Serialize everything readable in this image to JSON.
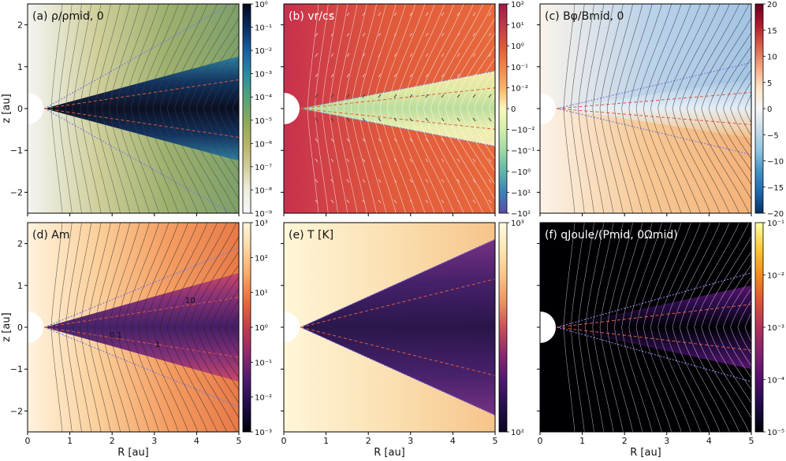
{
  "figure": {
    "xlabel": "R [au]",
    "ylabel": "z [au]"
  },
  "chart_data": [
    {
      "type": "heatmap",
      "id": "a",
      "title": "(a) ρ/ρmid, 0",
      "xlim": [
        0,
        5
      ],
      "ylim": [
        -2.5,
        2.5
      ],
      "x_ticks": [
        "0",
        "1",
        "2",
        "3",
        "4",
        "5"
      ],
      "y_ticks": [
        "2",
        "1",
        "0",
        "−1",
        "−2"
      ],
      "colorbar": {
        "scale": "log",
        "ticks": [
          "10⁰",
          "10⁻¹",
          "10⁻²",
          "10⁻³",
          "10⁻⁴",
          "10⁻⁵",
          "10⁻⁶",
          "10⁻⁷",
          "10⁻⁸",
          "10⁻⁹"
        ],
        "colors": [
          "#03071e",
          "#0b2c5f",
          "#1a5fa0",
          "#2a8aa2",
          "#54a27a",
          "#8aa85e",
          "#b5b368",
          "#d2cc9b",
          "#eeeedd",
          "#f7f7f7"
        ]
      },
      "contours": [
        "log-density bands",
        "field lines"
      ]
    },
    {
      "type": "heatmap",
      "id": "b",
      "title": "(b) vr/cs",
      "xlim": [
        0,
        5
      ],
      "ylim": [
        -2.5,
        2.5
      ],
      "x_ticks": [
        "0",
        "1",
        "2",
        "3",
        "4",
        "5"
      ],
      "y_ticks": [
        "2",
        "1",
        "0",
        "−1",
        "−2"
      ],
      "colorbar": {
        "scale": "symlog",
        "ticks": [
          "10²",
          "10¹",
          "10⁰",
          "10⁻¹",
          "10⁻²",
          "0",
          "−10⁻²",
          "−10⁻¹",
          "−10⁰",
          "−10¹",
          "−10²"
        ],
        "colors": [
          "#9b1d47",
          "#c4364a",
          "#e2553a",
          "#f2844b",
          "#f7b36a",
          "#fbf7be",
          "#d4eeae",
          "#a0d8a6",
          "#61b5a8",
          "#3e80b6",
          "#5a4ba5"
        ]
      },
      "annotations": [
        "velocity arrows"
      ]
    },
    {
      "type": "heatmap",
      "id": "c",
      "title": "(c) Bφ/Bmid, 0",
      "xlim": [
        0,
        5
      ],
      "ylim": [
        -2.5,
        2.5
      ],
      "x_ticks": [
        "0",
        "1",
        "2",
        "3",
        "4",
        "5"
      ],
      "y_ticks": [
        "2",
        "1",
        "0",
        "−1",
        "−2"
      ],
      "colorbar": {
        "scale": "linear",
        "ticks": [
          "20",
          "15",
          "10",
          "5",
          "0",
          "−5",
          "−10",
          "−15",
          "−20"
        ],
        "colors": [
          "#67001f",
          "#b2182b",
          "#d6604d",
          "#f4a582",
          "#fbe4c8",
          "#f7f7f7",
          "#c8dcea",
          "#92c5de",
          "#4393c3",
          "#2166ac",
          "#053061"
        ]
      },
      "annotations": [
        "contour 10"
      ]
    },
    {
      "type": "heatmap",
      "id": "d",
      "title": "(d) Am",
      "xlim": [
        0,
        5
      ],
      "ylim": [
        -2.5,
        2.5
      ],
      "x_ticks": [
        "0",
        "1",
        "2",
        "3",
        "4",
        "5"
      ],
      "y_ticks": [
        "2",
        "1",
        "0",
        "−1",
        "−2"
      ],
      "colorbar": {
        "scale": "log",
        "ticks": [
          "10³",
          "10²",
          "10¹",
          "10⁰",
          "10⁻¹",
          "10⁻²",
          "10⁻³"
        ],
        "colors": [
          "#fff5dc",
          "#fcd6a4",
          "#f8a866",
          "#ea6a3e",
          "#c23c4b",
          "#8d2a6b",
          "#4d1c6c",
          "#1f0c48",
          "#000004"
        ]
      },
      "annotations": [
        "10",
        "0.1",
        "1"
      ]
    },
    {
      "type": "heatmap",
      "id": "e",
      "title": "(e) T [K]",
      "xlim": [
        0,
        5
      ],
      "ylim": [
        -2.5,
        2.5
      ],
      "x_ticks": [
        "0",
        "1",
        "2",
        "3",
        "4",
        "5"
      ],
      "y_ticks": [
        "2",
        "1",
        "0",
        "−1",
        "−2"
      ],
      "colorbar": {
        "scale": "log",
        "ticks": [
          "10³",
          "10²"
        ],
        "colors": [
          "#fffbe0",
          "#fce7b4",
          "#f7c58b",
          "#ee9464",
          "#cb4f57",
          "#8c2a6e",
          "#4e1a6d",
          "#25104b",
          "#0d0520"
        ]
      }
    },
    {
      "type": "heatmap",
      "id": "f",
      "title": "(f) qJoule/(Pmid, 0Ωmid)",
      "xlim": [
        0,
        5
      ],
      "ylim": [
        -2.5,
        2.5
      ],
      "x_ticks": [
        "0",
        "1",
        "2",
        "3",
        "4",
        "5"
      ],
      "y_ticks": [
        "2",
        "1",
        "0",
        "−1",
        "−2"
      ],
      "colorbar": {
        "scale": "log",
        "ticks": [
          "10⁻¹",
          "10⁻²",
          "10⁻³",
          "10⁻⁴",
          "10⁻⁵"
        ],
        "colors": [
          "#fcffa4",
          "#f8c932",
          "#f48b1a",
          "#dd513a",
          "#b1325a",
          "#80226d",
          "#4f0f6d",
          "#1e0c45",
          "#000004"
        ]
      }
    }
  ]
}
